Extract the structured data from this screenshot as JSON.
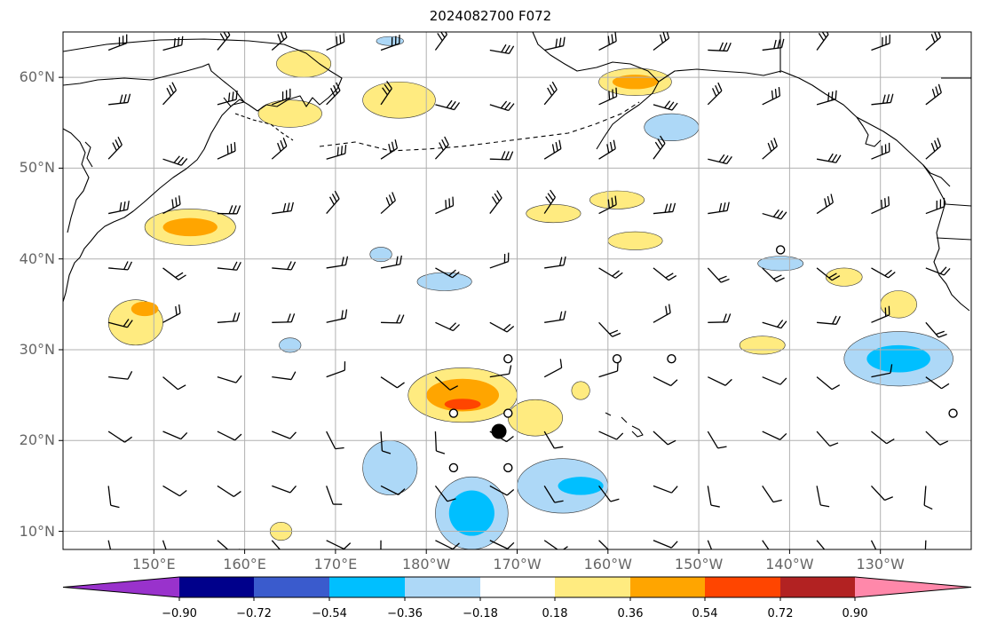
{
  "title": "2024082700 F072",
  "lat_labels": [
    {
      "deg": 60,
      "label": "60°N"
    },
    {
      "deg": 50,
      "label": "50°N"
    },
    {
      "deg": 40,
      "label": "40°N"
    },
    {
      "deg": 30,
      "label": "30°N"
    },
    {
      "deg": 20,
      "label": "20°N"
    },
    {
      "deg": 10,
      "label": "10°N"
    }
  ],
  "lon_labels": [
    {
      "deg": 150,
      "label": "150°E"
    },
    {
      "deg": 160,
      "label": "160°E"
    },
    {
      "deg": 170,
      "label": "170°E"
    },
    {
      "deg": 180,
      "label": "180°W"
    },
    {
      "deg": 190,
      "label": "170°W"
    },
    {
      "deg": 200,
      "label": "160°W"
    },
    {
      "deg": 210,
      "label": "150°W"
    },
    {
      "deg": 220,
      "label": "140°W"
    },
    {
      "deg": 230,
      "label": "130°W"
    }
  ],
  "map_extent": {
    "lon": [
      140,
      240
    ],
    "lat": [
      8,
      65
    ]
  },
  "colorbar": {
    "colors": [
      "#9932cc",
      "#00008b",
      "#3a5bcd",
      "#00bfff",
      "#add8f7",
      "#ffffff",
      "#ffeb80",
      "#ffa500",
      "#ff4500",
      "#b22222",
      "#ff88aa"
    ],
    "tick_values": [
      "−0.90",
      "−0.72",
      "−0.54",
      "−0.36",
      "−0.18",
      "0.18",
      "0.36",
      "0.54",
      "0.72",
      "0.90"
    ]
  },
  "anomaly_regions": [
    {
      "kind": "pos",
      "lon": 166.5,
      "lat": 61.5,
      "rx": 3,
      "ry": 1.5
    },
    {
      "kind": "pos",
      "lon": 165,
      "lat": 56,
      "rx": 3.5,
      "ry": 1.5
    },
    {
      "kind": "pos",
      "lon": 177,
      "lat": 57.5,
      "rx": 4,
      "ry": 2
    },
    {
      "kind": "pos",
      "lon": 154,
      "lat": 43.5,
      "rx": 5,
      "ry": 2
    },
    {
      "kind": "pos",
      "lon": 148,
      "lat": 33,
      "rx": 3,
      "ry": 2.5
    },
    {
      "kind": "pos",
      "lon": 184,
      "lat": 25,
      "rx": 6,
      "ry": 3
    },
    {
      "kind": "pos",
      "lon": 192,
      "lat": 22.5,
      "rx": 3,
      "ry": 2
    },
    {
      "kind": "pos",
      "lon": 203,
      "lat": 59.5,
      "rx": 4,
      "ry": 1.5
    },
    {
      "kind": "pos",
      "lon": 201,
      "lat": 46.5,
      "rx": 3,
      "ry": 1
    },
    {
      "kind": "pos",
      "lon": 194,
      "lat": 45,
      "rx": 3,
      "ry": 1
    },
    {
      "kind": "pos",
      "lon": 203,
      "lat": 42,
      "rx": 3,
      "ry": 1
    },
    {
      "kind": "pos",
      "lon": 217,
      "lat": 30.5,
      "rx": 2.5,
      "ry": 1
    },
    {
      "kind": "pos",
      "lon": 226,
      "lat": 38,
      "rx": 2,
      "ry": 1
    },
    {
      "kind": "pos",
      "lon": 232,
      "lat": 35,
      "rx": 2,
      "ry": 1.5
    },
    {
      "kind": "pos",
      "lon": 164,
      "lat": 10,
      "rx": 1.2,
      "ry": 1
    },
    {
      "kind": "pos",
      "lon": 197,
      "lat": 25.5,
      "rx": 1,
      "ry": 1
    },
    {
      "kind": "pos",
      "lon": 154,
      "lat": 43.5,
      "rx": 3,
      "ry": 1,
      "strong": true
    },
    {
      "kind": "pos",
      "lon": 184,
      "lat": 25,
      "rx": 4,
      "ry": 1.8,
      "strong": true
    },
    {
      "kind": "pos",
      "lon": 149,
      "lat": 34.5,
      "rx": 1.5,
      "ry": 0.8,
      "strong": true
    },
    {
      "kind": "pos",
      "lon": 203,
      "lat": 59.5,
      "rx": 2.5,
      "ry": 0.8,
      "strong": true
    },
    {
      "kind": "pos",
      "lon": 184,
      "lat": 24,
      "rx": 2,
      "ry": 0.6,
      "stronger": true
    },
    {
      "kind": "neg",
      "lon": 232,
      "lat": 29,
      "rx": 6,
      "ry": 3
    },
    {
      "kind": "neg",
      "lon": 185,
      "lat": 12,
      "rx": 4,
      "ry": 4
    },
    {
      "kind": "neg",
      "lon": 195,
      "lat": 15,
      "rx": 5,
      "ry": 3
    },
    {
      "kind": "neg",
      "lon": 176,
      "lat": 17,
      "rx": 3,
      "ry": 3
    },
    {
      "kind": "neg",
      "lon": 182,
      "lat": 37.5,
      "rx": 3,
      "ry": 1
    },
    {
      "kind": "neg",
      "lon": 207,
      "lat": 54.5,
      "rx": 3,
      "ry": 1.5
    },
    {
      "kind": "neg",
      "lon": 219,
      "lat": 39.5,
      "rx": 2.5,
      "ry": 0.8
    },
    {
      "kind": "neg",
      "lon": 175,
      "lat": 40.5,
      "rx": 1.2,
      "ry": 0.8
    },
    {
      "kind": "neg",
      "lon": 165,
      "lat": 30.5,
      "rx": 1.2,
      "ry": 0.8
    },
    {
      "kind": "neg",
      "lon": 176,
      "lat": 64,
      "rx": 1.5,
      "ry": 0.5
    },
    {
      "kind": "neg",
      "lon": 232,
      "lat": 29,
      "rx": 3.5,
      "ry": 1.5,
      "strong": true
    },
    {
      "kind": "neg",
      "lon": 185,
      "lat": 12,
      "rx": 2.5,
      "ry": 2.5,
      "strong": true
    },
    {
      "kind": "neg",
      "lon": 197,
      "lat": 15,
      "rx": 2.5,
      "ry": 1,
      "strong": true
    }
  ],
  "open_circles": [
    {
      "lon": 219,
      "lat": 41
    },
    {
      "lon": 189,
      "lat": 29
    },
    {
      "lon": 201,
      "lat": 29
    },
    {
      "lon": 207,
      "lat": 29
    },
    {
      "lon": 183,
      "lat": 23
    },
    {
      "lon": 189,
      "lat": 23
    },
    {
      "lon": 238,
      "lat": 23
    },
    {
      "lon": 183,
      "lat": 17
    },
    {
      "lon": 189,
      "lat": 17
    }
  ],
  "filled_dot": {
    "lon": 188,
    "lat": 21
  }
}
